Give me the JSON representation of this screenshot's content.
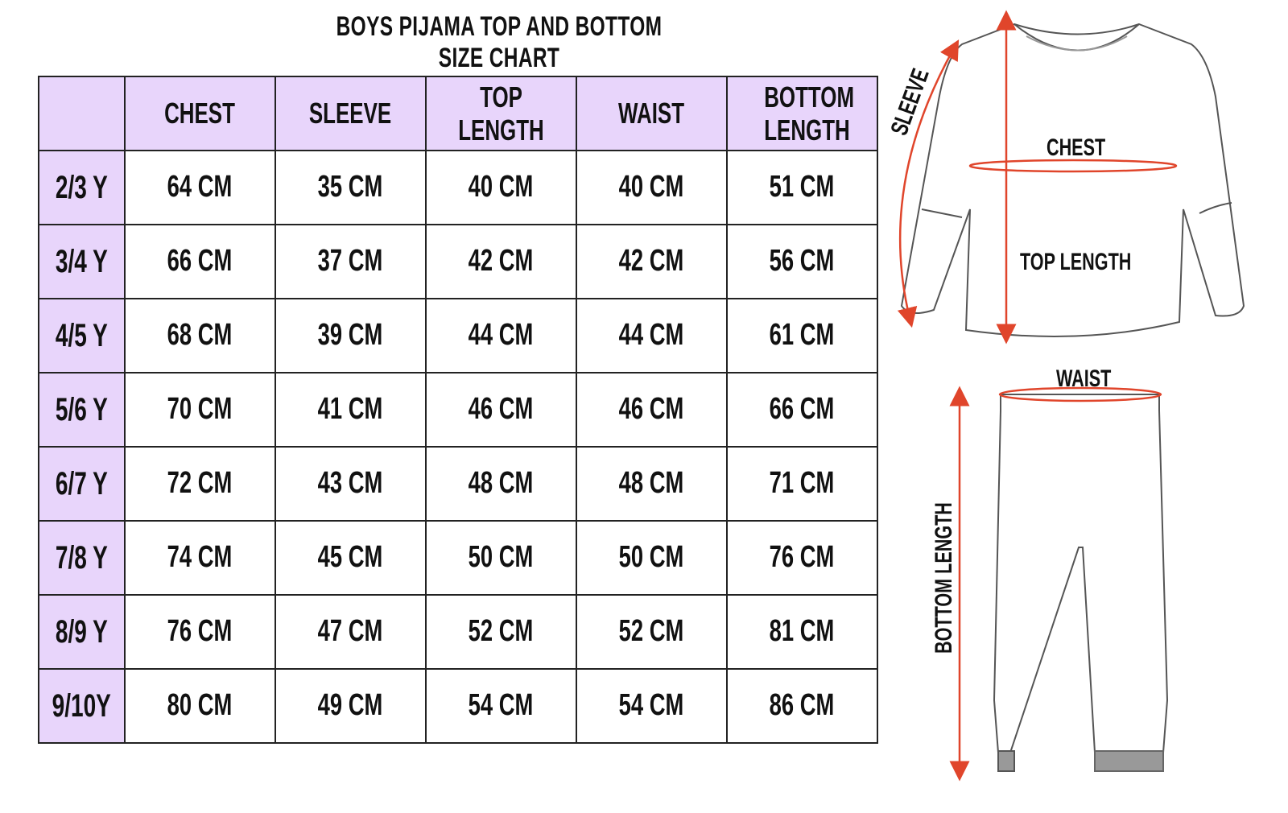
{
  "title": "BOYS PIJAMA TOP AND BOTTOM SIZE CHART",
  "table": {
    "headers": [
      "",
      "CHEST",
      "SLEEVE",
      "TOP LENGTH",
      "WAIST",
      "BOTTOM LENGTH"
    ],
    "rows": [
      [
        "2/3 Y",
        "64 CM",
        "35 CM",
        "40 CM",
        "40 CM",
        "51 CM"
      ],
      [
        "3/4 Y",
        "66 CM",
        "37 CM",
        "42 CM",
        "42 CM",
        "56 CM"
      ],
      [
        "4/5 Y",
        "68 CM",
        "39 CM",
        "44 CM",
        "44 CM",
        "61 CM"
      ],
      [
        "5/6 Y",
        "70 CM",
        "41 CM",
        "46 CM",
        "46 CM",
        "66 CM"
      ],
      [
        "6/7 Y",
        "72 CM",
        "43 CM",
        "48 CM",
        "48 CM",
        "71 CM"
      ],
      [
        "7/8 Y",
        "74 CM",
        "45 CM",
        "50 CM",
        "50 CM",
        "76 CM"
      ],
      [
        "8/9 Y",
        "76 CM",
        "47 CM",
        "52 CM",
        "52 CM",
        "81 CM"
      ],
      [
        "9/10Y",
        "80 CM",
        "49 CM",
        "54 CM",
        "54 CM",
        "86 CM"
      ]
    ]
  },
  "diagram": {
    "top_labels": {
      "sleeve": "SLEEVE",
      "chest": "CHEST",
      "top_length": "TOP LENGTH"
    },
    "bottom_labels": {
      "waist": "WAIST",
      "bottom_length": "BOTTOM LENGTH"
    }
  },
  "colors": {
    "header_bg": "#e8d5fb",
    "measure_line": "#e0452b"
  }
}
